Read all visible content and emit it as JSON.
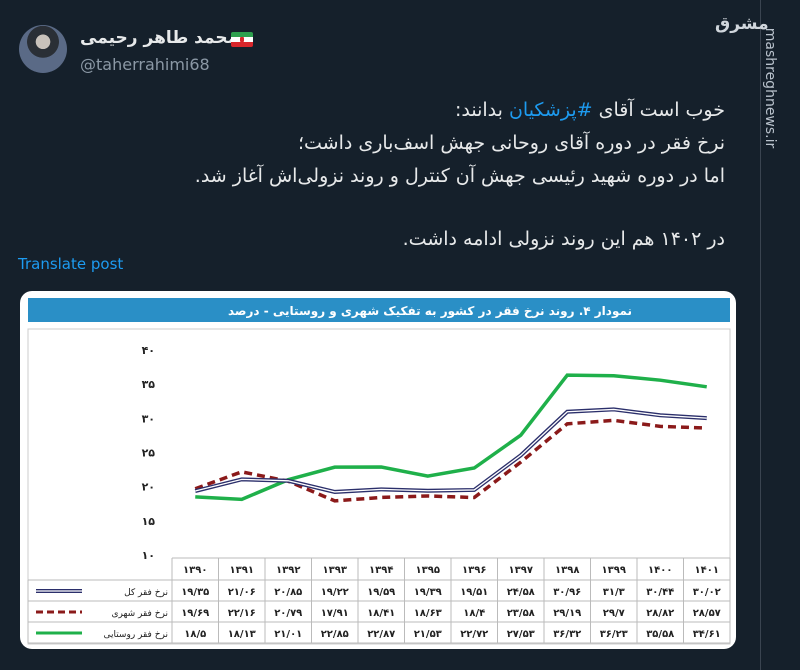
{
  "author": {
    "name": "محمد طاهر رحیمی",
    "handle": "@taherrahimi68",
    "flag": "iran-flag-icon"
  },
  "tweet": {
    "line1_pre": "خوب است آقای ",
    "hashtag": "#پزشکیان",
    "line1_post": " بدانند:",
    "line2": "نرخ فقر در دوره آقای روحانی جهش اسف‌باری داشت؛",
    "line3": "اما در دوره شهید رئیسی جهش آن کنترل و روند نزولی‌اش آغاز شد.",
    "line4": "در ۱۴۰۲ هم این روند نزولی ادامه داشت."
  },
  "translate_label": "Translate post",
  "watermark": {
    "logo": "مشرق",
    "site": "mashreghnews.ir"
  },
  "chart_data": {
    "type": "line",
    "title": "نمودار ۴. روند نرخ فقر در کشور به تفکیک شهری و روستایی - درصد",
    "categories": [
      "۱۳۹۰",
      "۱۳۹۱",
      "۱۳۹۲",
      "۱۳۹۳",
      "۱۳۹۴",
      "۱۳۹۵",
      "۱۳۹۶",
      "۱۳۹۷",
      "۱۳۹۸",
      "۱۳۹۹",
      "۱۴۰۰",
      "۱۴۰۱"
    ],
    "ylim": [
      10,
      40
    ],
    "yticks": [
      "۱۰",
      "۱۵",
      "۲۰",
      "۲۵",
      "۳۰",
      "۳۵",
      "۴۰"
    ],
    "ytick_values": [
      10,
      15,
      20,
      25,
      30,
      35,
      40
    ],
    "grid": false,
    "legend": "table-left",
    "series": [
      {
        "name": "نرخ فقر کل",
        "color": "#2b2f6b",
        "style": "double",
        "values": [
          19.35,
          21.06,
          20.85,
          19.22,
          19.59,
          19.39,
          19.51,
          24.58,
          30.96,
          31.3,
          30.44,
          30.02
        ],
        "labels": [
          "۱۹/۳۵",
          "۲۱/۰۶",
          "۲۰/۸۵",
          "۱۹/۲۲",
          "۱۹/۵۹",
          "۱۹/۳۹",
          "۱۹/۵۱",
          "۲۴/۵۸",
          "۳۰/۹۶",
          "۳۱/۳",
          "۳۰/۴۴",
          "۳۰/۰۲"
        ]
      },
      {
        "name": "نرخ فقر شهری",
        "color": "#8b1a1a",
        "style": "dashed",
        "values": [
          19.69,
          22.16,
          20.79,
          17.91,
          18.41,
          18.63,
          18.4,
          23.58,
          29.19,
          29.7,
          28.82,
          28.57
        ],
        "labels": [
          "۱۹/۶۹",
          "۲۲/۱۶",
          "۲۰/۷۹",
          "۱۷/۹۱",
          "۱۸/۴۱",
          "۱۸/۶۳",
          "۱۸/۴",
          "۲۳/۵۸",
          "۲۹/۱۹",
          "۲۹/۷",
          "۲۸/۸۲",
          "۲۸/۵۷"
        ]
      },
      {
        "name": "نرخ فقر روستایی",
        "color": "#1fb04a",
        "style": "solid",
        "values": [
          18.5,
          18.13,
          21.01,
          22.85,
          22.87,
          21.53,
          22.72,
          27.53,
          36.32,
          36.23,
          35.58,
          34.61
        ],
        "labels": [
          "۱۸/۵",
          "۱۸/۱۳",
          "۲۱/۰۱",
          "۲۲/۸۵",
          "۲۲/۸۷",
          "۲۱/۵۳",
          "۲۲/۷۲",
          "۲۷/۵۳",
          "۳۶/۳۲",
          "۳۶/۲۳",
          "۳۵/۵۸",
          "۳۴/۶۱"
        ]
      }
    ]
  }
}
